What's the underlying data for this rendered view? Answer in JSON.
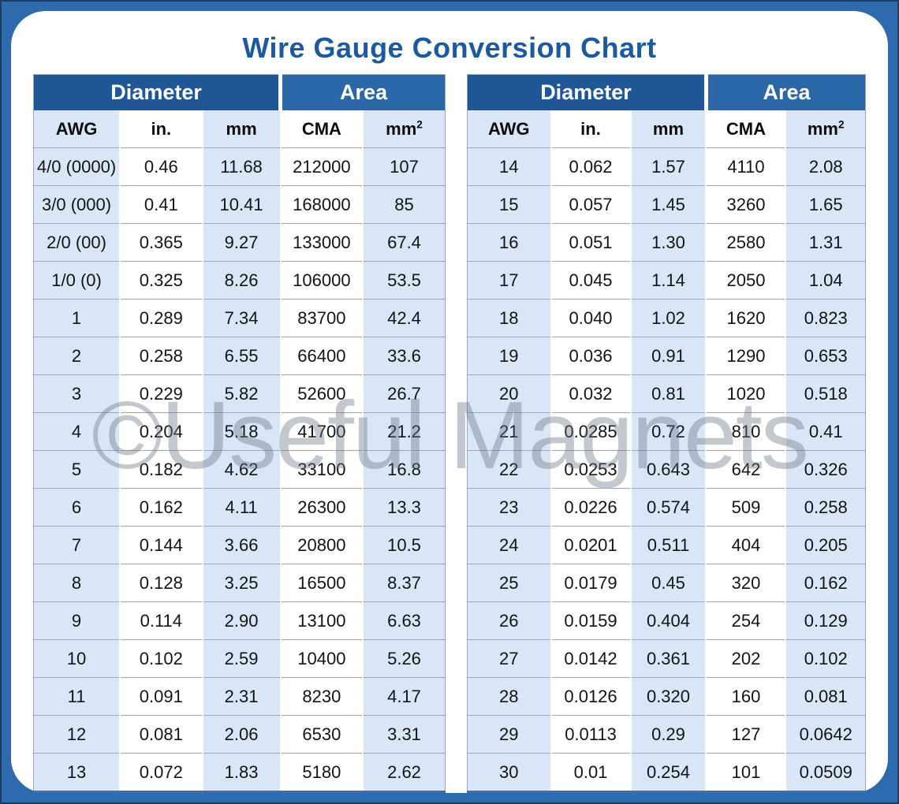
{
  "title": "Wire Gauge Conversion Chart",
  "watermark": "©Useful Magnets",
  "colors": {
    "frame_blue": "#2d6aae",
    "frame_outline": "#1c3c64",
    "card_background": "#ffffff",
    "title_blue": "#1b5a9e",
    "diameter_header_blue": "#1f5796",
    "area_header_blue": "#2c67a7",
    "striped_cell_blue": "#d9e6f5",
    "row_line": "#93a7bf",
    "table_bottom_line": "#3a70ae",
    "watermark_gray": "#8a98a5"
  },
  "chart_data": {
    "type": "table",
    "title": "Wire Gauge Conversion Chart",
    "group_headers": [
      {
        "label": "Diameter",
        "colspan": 3
      },
      {
        "label": "Area",
        "colspan": 2
      }
    ],
    "columns": [
      {
        "id": "awg",
        "label": "AWG"
      },
      {
        "id": "in",
        "label": "in."
      },
      {
        "id": "mm",
        "label": "mm"
      },
      {
        "id": "cma",
        "label": "CMA"
      },
      {
        "id": "mm2",
        "label": "mm",
        "sup": "2"
      }
    ],
    "tables": [
      {
        "rows": [
          [
            "4/0 (0000)",
            "0.46",
            "11.68",
            "212000",
            "107"
          ],
          [
            "3/0 (000)",
            "0.41",
            "10.41",
            "168000",
            "85"
          ],
          [
            "2/0 (00)",
            "0.365",
            "9.27",
            "133000",
            "67.4"
          ],
          [
            "1/0 (0)",
            "0.325",
            "8.26",
            "106000",
            "53.5"
          ],
          [
            "1",
            "0.289",
            "7.34",
            "83700",
            "42.4"
          ],
          [
            "2",
            "0.258",
            "6.55",
            "66400",
            "33.6"
          ],
          [
            "3",
            "0.229",
            "5.82",
            "52600",
            "26.7"
          ],
          [
            "4",
            "0.204",
            "5.18",
            "41700",
            "21.2"
          ],
          [
            "5",
            "0.182",
            "4.62",
            "33100",
            "16.8"
          ],
          [
            "6",
            "0.162",
            "4.11",
            "26300",
            "13.3"
          ],
          [
            "7",
            "0.144",
            "3.66",
            "20800",
            "10.5"
          ],
          [
            "8",
            "0.128",
            "3.25",
            "16500",
            "8.37"
          ],
          [
            "9",
            "0.114",
            "2.90",
            "13100",
            "6.63"
          ],
          [
            "10",
            "0.102",
            "2.59",
            "10400",
            "5.26"
          ],
          [
            "11",
            "0.091",
            "2.31",
            "8230",
            "4.17"
          ],
          [
            "12",
            "0.081",
            "2.06",
            "6530",
            "3.31"
          ],
          [
            "13",
            "0.072",
            "1.83",
            "5180",
            "2.62"
          ]
        ]
      },
      {
        "rows": [
          [
            "14",
            "0.062",
            "1.57",
            "4110",
            "2.08"
          ],
          [
            "15",
            "0.057",
            "1.45",
            "3260",
            "1.65"
          ],
          [
            "16",
            "0.051",
            "1.30",
            "2580",
            "1.31"
          ],
          [
            "17",
            "0.045",
            "1.14",
            "2050",
            "1.04"
          ],
          [
            "18",
            "0.040",
            "1.02",
            "1620",
            "0.823"
          ],
          [
            "19",
            "0.036",
            "0.91",
            "1290",
            "0.653"
          ],
          [
            "20",
            "0.032",
            "0.81",
            "1020",
            "0.518"
          ],
          [
            "21",
            "0.0285",
            "0.72",
            "810",
            "0.41"
          ],
          [
            "22",
            "0.0253",
            "0.643",
            "642",
            "0.326"
          ],
          [
            "23",
            "0.0226",
            "0.574",
            "509",
            "0.258"
          ],
          [
            "24",
            "0.0201",
            "0.511",
            "404",
            "0.205"
          ],
          [
            "25",
            "0.0179",
            "0.45",
            "320",
            "0.162"
          ],
          [
            "26",
            "0.0159",
            "0.404",
            "254",
            "0.129"
          ],
          [
            "27",
            "0.0142",
            "0.361",
            "202",
            "0.102"
          ],
          [
            "28",
            "0.0126",
            "0.320",
            "160",
            "0.081"
          ],
          [
            "29",
            "0.0113",
            "0.29",
            "127",
            "0.0642"
          ],
          [
            "30",
            "0.01",
            "0.254",
            "101",
            "0.0509"
          ]
        ]
      }
    ]
  }
}
